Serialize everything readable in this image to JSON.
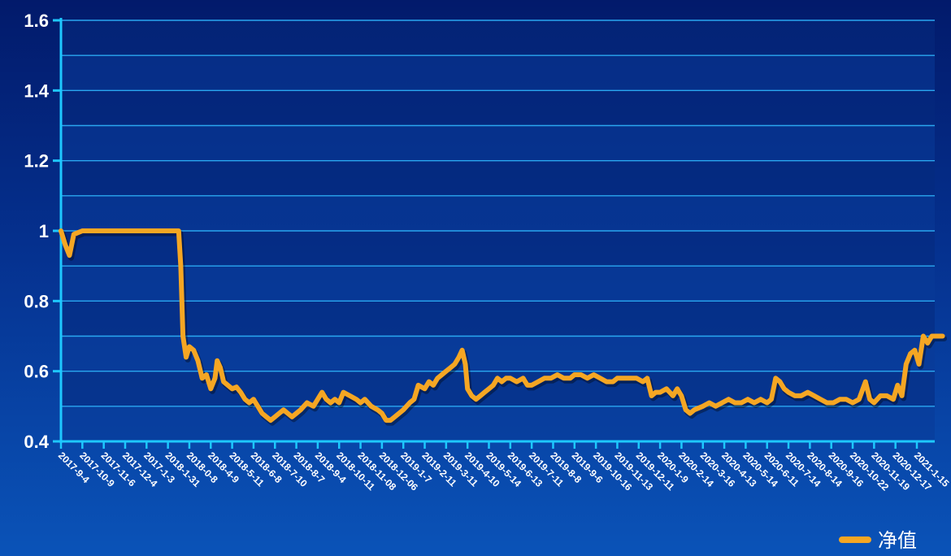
{
  "colors": {
    "line": "#f5a623",
    "axis": "#1ec8ff",
    "grid": "#2aa7f0",
    "text": "#ffffff",
    "band_dark": "#06297e",
    "band_light": "#0a3a98"
  },
  "legend": {
    "label": "净值",
    "position": "bottom-right"
  },
  "chart_data": {
    "type": "line",
    "title": "",
    "xlabel": "",
    "ylabel": "",
    "ylim": [
      0.4,
      1.6
    ],
    "yticks": [
      "0.4",
      "0.6",
      "0.8",
      "1",
      "1.2",
      "1.4",
      "1.6"
    ],
    "grid": true,
    "legend_position": "bottom-right",
    "x_tick_labels": [
      "2017-9-4",
      "2017-10-9",
      "2017-11-6",
      "2017-12-4",
      "2017-1-3",
      "2018-1-31",
      "2018-0-8",
      "2018-4-9",
      "2018-5-11",
      "2018-6-8",
      "2018-7-10",
      "2018-8-7",
      "2018-9-4",
      "2018-10-11",
      "2018-11-08",
      "2018-12-06",
      "2019-1-7",
      "2019-2-11",
      "2019-3-11",
      "2019-4-10",
      "2019-5-14",
      "2019-6-13",
      "2019-7-11",
      "2019-8-8",
      "2019-9-6",
      "2019-10-16",
      "2019-11-13",
      "2019-12-11",
      "2020-1-9",
      "2020-2-14",
      "2020-3-16",
      "2020-4-13",
      "2020-5-14",
      "2020-6-11",
      "2020-7-14",
      "2020-8-14",
      "2020-9-16",
      "2020-10-22",
      "2020-11-19",
      "2020-12-17",
      "2021-1-15"
    ],
    "series": [
      {
        "name": "净值",
        "points": [
          [
            0.0,
            1.0
          ],
          [
            0.2,
            0.96
          ],
          [
            0.4,
            0.93
          ],
          [
            0.6,
            0.99
          ],
          [
            1.0,
            1.0
          ],
          [
            2.0,
            1.0
          ],
          [
            3.0,
            1.0
          ],
          [
            4.0,
            1.0
          ],
          [
            5.0,
            1.0
          ],
          [
            5.5,
            1.0
          ],
          [
            5.6,
            0.9
          ],
          [
            5.7,
            0.7
          ],
          [
            5.85,
            0.64
          ],
          [
            6.0,
            0.67
          ],
          [
            6.2,
            0.66
          ],
          [
            6.4,
            0.63
          ],
          [
            6.6,
            0.58
          ],
          [
            6.8,
            0.59
          ],
          [
            7.0,
            0.55
          ],
          [
            7.2,
            0.58
          ],
          [
            7.3,
            0.63
          ],
          [
            7.45,
            0.61
          ],
          [
            7.6,
            0.57
          ],
          [
            7.8,
            0.56
          ],
          [
            8.0,
            0.55
          ],
          [
            8.2,
            0.555
          ],
          [
            8.4,
            0.54
          ],
          [
            8.6,
            0.52
          ],
          [
            8.8,
            0.51
          ],
          [
            9.0,
            0.52
          ],
          [
            9.2,
            0.5
          ],
          [
            9.4,
            0.48
          ],
          [
            9.6,
            0.47
          ],
          [
            9.8,
            0.46
          ],
          [
            10.0,
            0.47
          ],
          [
            10.2,
            0.48
          ],
          [
            10.4,
            0.49
          ],
          [
            10.6,
            0.48
          ],
          [
            10.8,
            0.47
          ],
          [
            11.0,
            0.48
          ],
          [
            11.2,
            0.49
          ],
          [
            11.5,
            0.51
          ],
          [
            11.8,
            0.5
          ],
          [
            12.0,
            0.52
          ],
          [
            12.2,
            0.54
          ],
          [
            12.4,
            0.52
          ],
          [
            12.6,
            0.51
          ],
          [
            12.8,
            0.52
          ],
          [
            13.0,
            0.51
          ],
          [
            13.2,
            0.54
          ],
          [
            13.5,
            0.53
          ],
          [
            13.8,
            0.52
          ],
          [
            14.0,
            0.51
          ],
          [
            14.2,
            0.52
          ],
          [
            14.5,
            0.5
          ],
          [
            14.8,
            0.49
          ],
          [
            15.0,
            0.48
          ],
          [
            15.2,
            0.46
          ],
          [
            15.4,
            0.46
          ],
          [
            15.6,
            0.47
          ],
          [
            16.0,
            0.49
          ],
          [
            16.3,
            0.51
          ],
          [
            16.5,
            0.52
          ],
          [
            16.7,
            0.56
          ],
          [
            17.0,
            0.55
          ],
          [
            17.2,
            0.57
          ],
          [
            17.4,
            0.56
          ],
          [
            17.6,
            0.58
          ],
          [
            17.8,
            0.59
          ],
          [
            18.0,
            0.6
          ],
          [
            18.2,
            0.61
          ],
          [
            18.4,
            0.62
          ],
          [
            18.6,
            0.64
          ],
          [
            18.75,
            0.66
          ],
          [
            18.9,
            0.62
          ],
          [
            19.0,
            0.55
          ],
          [
            19.2,
            0.53
          ],
          [
            19.4,
            0.52
          ],
          [
            19.6,
            0.53
          ],
          [
            19.8,
            0.54
          ],
          [
            20.0,
            0.55
          ],
          [
            20.2,
            0.56
          ],
          [
            20.4,
            0.58
          ],
          [
            20.6,
            0.57
          ],
          [
            20.8,
            0.58
          ],
          [
            21.0,
            0.58
          ],
          [
            21.3,
            0.57
          ],
          [
            21.6,
            0.58
          ],
          [
            21.8,
            0.56
          ],
          [
            22.0,
            0.56
          ],
          [
            22.3,
            0.57
          ],
          [
            22.6,
            0.58
          ],
          [
            22.9,
            0.58
          ],
          [
            23.2,
            0.59
          ],
          [
            23.5,
            0.58
          ],
          [
            23.8,
            0.58
          ],
          [
            24.0,
            0.59
          ],
          [
            24.3,
            0.59
          ],
          [
            24.6,
            0.58
          ],
          [
            24.9,
            0.59
          ],
          [
            25.2,
            0.58
          ],
          [
            25.5,
            0.57
          ],
          [
            25.8,
            0.57
          ],
          [
            26.0,
            0.58
          ],
          [
            26.3,
            0.58
          ],
          [
            26.6,
            0.58
          ],
          [
            26.9,
            0.58
          ],
          [
            27.2,
            0.57
          ],
          [
            27.4,
            0.58
          ],
          [
            27.6,
            0.53
          ],
          [
            27.8,
            0.54
          ],
          [
            28.0,
            0.54
          ],
          [
            28.3,
            0.55
          ],
          [
            28.6,
            0.53
          ],
          [
            28.8,
            0.55
          ],
          [
            29.0,
            0.53
          ],
          [
            29.2,
            0.49
          ],
          [
            29.4,
            0.48
          ],
          [
            29.6,
            0.49
          ],
          [
            30.0,
            0.5
          ],
          [
            30.3,
            0.51
          ],
          [
            30.6,
            0.5
          ],
          [
            30.9,
            0.51
          ],
          [
            31.2,
            0.52
          ],
          [
            31.5,
            0.51
          ],
          [
            31.8,
            0.51
          ],
          [
            32.1,
            0.52
          ],
          [
            32.4,
            0.51
          ],
          [
            32.7,
            0.52
          ],
          [
            33.0,
            0.51
          ],
          [
            33.2,
            0.52
          ],
          [
            33.4,
            0.58
          ],
          [
            33.6,
            0.57
          ],
          [
            33.8,
            0.55
          ],
          [
            34.0,
            0.54
          ],
          [
            34.3,
            0.53
          ],
          [
            34.6,
            0.53
          ],
          [
            34.9,
            0.54
          ],
          [
            35.2,
            0.53
          ],
          [
            35.5,
            0.52
          ],
          [
            35.8,
            0.51
          ],
          [
            36.1,
            0.51
          ],
          [
            36.4,
            0.52
          ],
          [
            36.7,
            0.52
          ],
          [
            37.0,
            0.51
          ],
          [
            37.3,
            0.52
          ],
          [
            37.6,
            0.57
          ],
          [
            37.8,
            0.52
          ],
          [
            38.0,
            0.51
          ],
          [
            38.3,
            0.53
          ],
          [
            38.6,
            0.53
          ],
          [
            38.9,
            0.52
          ],
          [
            39.1,
            0.56
          ],
          [
            39.3,
            0.53
          ],
          [
            39.5,
            0.62
          ],
          [
            39.7,
            0.65
          ],
          [
            39.9,
            0.66
          ],
          [
            40.1,
            0.62
          ],
          [
            40.3,
            0.7
          ],
          [
            40.5,
            0.68
          ],
          [
            40.7,
            0.7
          ],
          [
            40.9,
            0.7
          ],
          [
            41.2,
            0.7
          ]
        ]
      }
    ]
  }
}
